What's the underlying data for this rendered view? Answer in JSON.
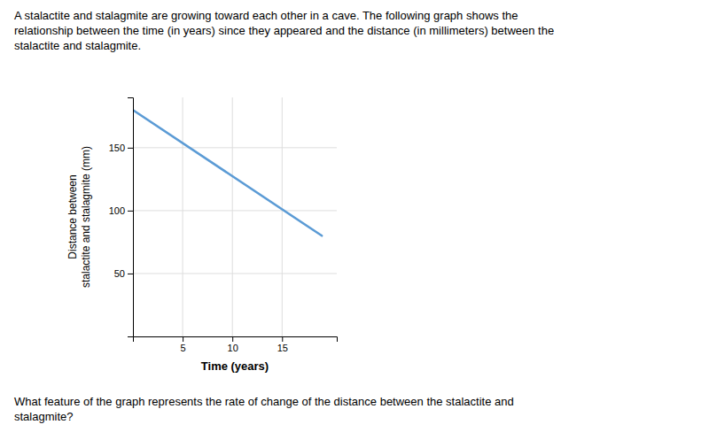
{
  "chart_data": {
    "type": "line",
    "title": "A stalactite and stalagmite are growing toward each other in a cave. The following graph shows the\nrelationship between the time (in years) since they appeared and the distance (in millimeters) between the\nstalactite and stalagmite.",
    "annotations": [
      "What feature of the graph represents the rate of change of the distance between the stalactite and\nstalagmite?"
    ],
    "x": [
      0,
      19
    ],
    "values": [
      180,
      80
    ],
    "color": "#5b9bd5",
    "xlabel": "Time (years)",
    "ylabel": "Distance between\nstalactite and stalagmite (mm)",
    "xlim": [
      0,
      20.5
    ],
    "ylim": [
      0,
      190
    ],
    "xticks": [
      5,
      10,
      15
    ],
    "yticks": [
      50,
      100,
      150
    ],
    "grid": true
  }
}
